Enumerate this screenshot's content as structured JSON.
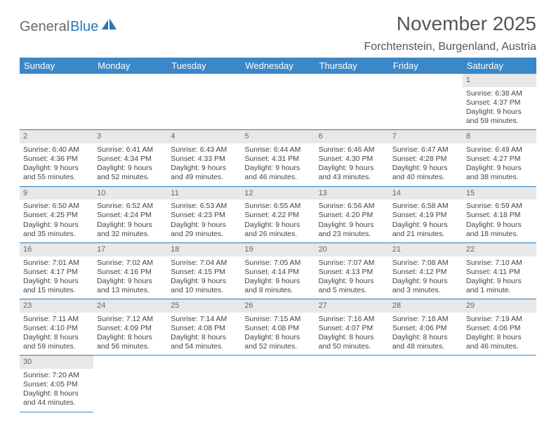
{
  "logo": {
    "text1": "General",
    "text2": "Blue"
  },
  "title": "November 2025",
  "location": "Forchtenstein, Burgenland, Austria",
  "colors": {
    "header_bg": "#3b87c8",
    "header_fg": "#ffffff",
    "row_divider": "#3b87c8",
    "daynum_bg": "#e8e8e8",
    "text": "#444444",
    "title_text": "#555555"
  },
  "dayNames": [
    "Sunday",
    "Monday",
    "Tuesday",
    "Wednesday",
    "Thursday",
    "Friday",
    "Saturday"
  ],
  "weeks": [
    [
      null,
      null,
      null,
      null,
      null,
      null,
      {
        "n": "1",
        "sr": "6:38 AM",
        "ss": "4:37 PM",
        "dl": "9 hours and 59 minutes."
      }
    ],
    [
      {
        "n": "2",
        "sr": "6:40 AM",
        "ss": "4:36 PM",
        "dl": "9 hours and 55 minutes."
      },
      {
        "n": "3",
        "sr": "6:41 AM",
        "ss": "4:34 PM",
        "dl": "9 hours and 52 minutes."
      },
      {
        "n": "4",
        "sr": "6:43 AM",
        "ss": "4:33 PM",
        "dl": "9 hours and 49 minutes."
      },
      {
        "n": "5",
        "sr": "6:44 AM",
        "ss": "4:31 PM",
        "dl": "9 hours and 46 minutes."
      },
      {
        "n": "6",
        "sr": "6:46 AM",
        "ss": "4:30 PM",
        "dl": "9 hours and 43 minutes."
      },
      {
        "n": "7",
        "sr": "6:47 AM",
        "ss": "4:28 PM",
        "dl": "9 hours and 40 minutes."
      },
      {
        "n": "8",
        "sr": "6:49 AM",
        "ss": "4:27 PM",
        "dl": "9 hours and 38 minutes."
      }
    ],
    [
      {
        "n": "9",
        "sr": "6:50 AM",
        "ss": "4:25 PM",
        "dl": "9 hours and 35 minutes."
      },
      {
        "n": "10",
        "sr": "6:52 AM",
        "ss": "4:24 PM",
        "dl": "9 hours and 32 minutes."
      },
      {
        "n": "11",
        "sr": "6:53 AM",
        "ss": "4:23 PM",
        "dl": "9 hours and 29 minutes."
      },
      {
        "n": "12",
        "sr": "6:55 AM",
        "ss": "4:22 PM",
        "dl": "9 hours and 26 minutes."
      },
      {
        "n": "13",
        "sr": "6:56 AM",
        "ss": "4:20 PM",
        "dl": "9 hours and 23 minutes."
      },
      {
        "n": "14",
        "sr": "6:58 AM",
        "ss": "4:19 PM",
        "dl": "9 hours and 21 minutes."
      },
      {
        "n": "15",
        "sr": "6:59 AM",
        "ss": "4:18 PM",
        "dl": "9 hours and 18 minutes."
      }
    ],
    [
      {
        "n": "16",
        "sr": "7:01 AM",
        "ss": "4:17 PM",
        "dl": "9 hours and 15 minutes."
      },
      {
        "n": "17",
        "sr": "7:02 AM",
        "ss": "4:16 PM",
        "dl": "9 hours and 13 minutes."
      },
      {
        "n": "18",
        "sr": "7:04 AM",
        "ss": "4:15 PM",
        "dl": "9 hours and 10 minutes."
      },
      {
        "n": "19",
        "sr": "7:05 AM",
        "ss": "4:14 PM",
        "dl": "9 hours and 8 minutes."
      },
      {
        "n": "20",
        "sr": "7:07 AM",
        "ss": "4:13 PM",
        "dl": "9 hours and 5 minutes."
      },
      {
        "n": "21",
        "sr": "7:08 AM",
        "ss": "4:12 PM",
        "dl": "9 hours and 3 minutes."
      },
      {
        "n": "22",
        "sr": "7:10 AM",
        "ss": "4:11 PM",
        "dl": "9 hours and 1 minute."
      }
    ],
    [
      {
        "n": "23",
        "sr": "7:11 AM",
        "ss": "4:10 PM",
        "dl": "8 hours and 59 minutes."
      },
      {
        "n": "24",
        "sr": "7:12 AM",
        "ss": "4:09 PM",
        "dl": "8 hours and 56 minutes."
      },
      {
        "n": "25",
        "sr": "7:14 AM",
        "ss": "4:08 PM",
        "dl": "8 hours and 54 minutes."
      },
      {
        "n": "26",
        "sr": "7:15 AM",
        "ss": "4:08 PM",
        "dl": "8 hours and 52 minutes."
      },
      {
        "n": "27",
        "sr": "7:16 AM",
        "ss": "4:07 PM",
        "dl": "8 hours and 50 minutes."
      },
      {
        "n": "28",
        "sr": "7:18 AM",
        "ss": "4:06 PM",
        "dl": "8 hours and 48 minutes."
      },
      {
        "n": "29",
        "sr": "7:19 AM",
        "ss": "4:06 PM",
        "dl": "8 hours and 46 minutes."
      }
    ],
    [
      {
        "n": "30",
        "sr": "7:20 AM",
        "ss": "4:05 PM",
        "dl": "8 hours and 44 minutes."
      },
      null,
      null,
      null,
      null,
      null,
      null
    ]
  ],
  "labels": {
    "sunrise": "Sunrise: ",
    "sunset": "Sunset: ",
    "daylight": "Daylight: "
  }
}
